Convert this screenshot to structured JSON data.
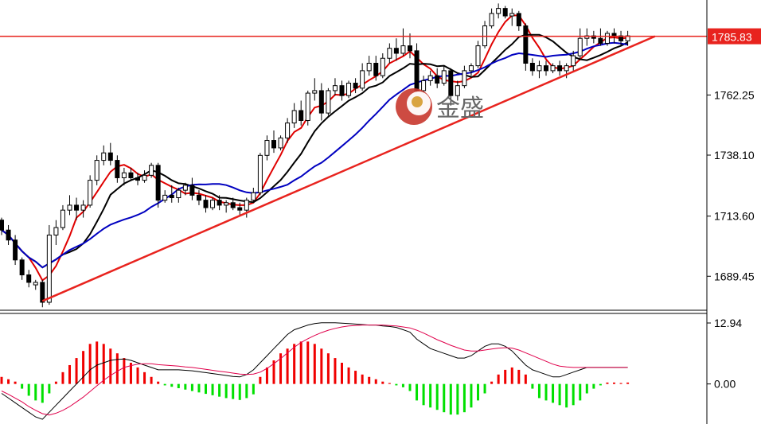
{
  "watermark": {
    "text": "金盛",
    "logo": "jinsheng-logo-icon"
  },
  "colors": {
    "bull_body": "#ffffff",
    "bear_body": "#000000",
    "wick": "#000000",
    "ma_fast": "#e00000",
    "ma_mid": "#000000",
    "ma_slow": "#0000c0",
    "trendline": "#e8231e",
    "resistance": "#e8231e",
    "hist_pos": "#f00000",
    "hist_neg": "#00e000",
    "macd_line": "#000000",
    "signal_line": "#e0004b",
    "price_tag_bg": "#e8231e"
  },
  "chart_data": [
    {
      "type": "candlestick",
      "price_tag": "1785.83",
      "y_ticks": [
        "1762.25",
        "1738.10",
        "1713.60",
        "1689.45"
      ],
      "tick_values": [
        1762.25,
        1738.1,
        1713.6,
        1689.45
      ],
      "ylim": [
        1675.8,
        1800.4
      ],
      "x_count": 93,
      "resistance_level": 1785.83,
      "trendline": {
        "start": [
          6,
          1679.5
        ],
        "end": [
          96,
          1785.83
        ]
      },
      "candles": [
        [
          1712,
          1713,
          1706,
          1708
        ],
        [
          1708,
          1710,
          1702,
          1704
        ],
        [
          1704,
          1706,
          1694,
          1696
        ],
        [
          1696,
          1697,
          1688,
          1690
        ],
        [
          1690,
          1692,
          1685,
          1687
        ],
        [
          1686,
          1688,
          1684,
          1687
        ],
        [
          1687,
          1688,
          1677,
          1679
        ],
        [
          1679,
          1710,
          1678,
          1706
        ],
        [
          1706,
          1712,
          1702,
          1709
        ],
        [
          1709,
          1718,
          1708,
          1716
        ],
        [
          1716,
          1722,
          1714,
          1718
        ],
        [
          1718,
          1721,
          1712,
          1716
        ],
        [
          1716,
          1720,
          1713,
          1718
        ],
        [
          1718,
          1730,
          1717,
          1728
        ],
        [
          1728,
          1738,
          1726,
          1736
        ],
        [
          1736,
          1742,
          1734,
          1739
        ],
        [
          1739,
          1743,
          1734,
          1736
        ],
        [
          1736,
          1738,
          1727,
          1729
        ],
        [
          1729,
          1733,
          1726,
          1731
        ],
        [
          1731,
          1733,
          1728,
          1729
        ],
        [
          1729,
          1731,
          1726,
          1728
        ],
        [
          1728,
          1732,
          1727,
          1730
        ],
        [
          1730,
          1735,
          1729,
          1734
        ],
        [
          1734,
          1735,
          1717,
          1720
        ],
        [
          1720,
          1724,
          1719,
          1722
        ],
        [
          1722,
          1726,
          1719,
          1721
        ],
        [
          1721,
          1725,
          1719,
          1724
        ],
        [
          1724,
          1727,
          1722,
          1726
        ],
        [
          1726,
          1729,
          1720,
          1722
        ],
        [
          1722,
          1724,
          1718,
          1720
        ],
        [
          1720,
          1722,
          1715,
          1717
        ],
        [
          1717,
          1721,
          1716,
          1720
        ],
        [
          1720,
          1722,
          1716,
          1718
        ],
        [
          1718,
          1720,
          1715,
          1719
        ],
        [
          1719,
          1721,
          1716,
          1717
        ],
        [
          1717,
          1719,
          1714,
          1716
        ],
        [
          1716,
          1721,
          1713,
          1720
        ],
        [
          1720,
          1725,
          1719,
          1723
        ],
        [
          1723,
          1739,
          1722,
          1738
        ],
        [
          1738,
          1746,
          1736,
          1744
        ],
        [
          1744,
          1748,
          1739,
          1741
        ],
        [
          1741,
          1746,
          1740,
          1745
        ],
        [
          1745,
          1753,
          1743,
          1751
        ],
        [
          1751,
          1759,
          1749,
          1756
        ],
        [
          1756,
          1760,
          1750,
          1752
        ],
        [
          1752,
          1764,
          1750,
          1763
        ],
        [
          1763,
          1769,
          1760,
          1764
        ],
        [
          1764,
          1767,
          1752,
          1755
        ],
        [
          1755,
          1765,
          1754,
          1764
        ],
        [
          1764,
          1769,
          1762,
          1766
        ],
        [
          1766,
          1768,
          1760,
          1762
        ],
        [
          1762,
          1768,
          1761,
          1767
        ],
        [
          1767,
          1769,
          1763,
          1765
        ],
        [
          1765,
          1775,
          1764,
          1772
        ],
        [
          1772,
          1778,
          1770,
          1775
        ],
        [
          1775,
          1778,
          1768,
          1770
        ],
        [
          1770,
          1779,
          1769,
          1777
        ],
        [
          1777,
          1783,
          1775,
          1781
        ],
        [
          1781,
          1785,
          1776,
          1779
        ],
        [
          1779,
          1789,
          1778,
          1782
        ],
        [
          1782,
          1787,
          1777,
          1780
        ],
        [
          1780,
          1783,
          1760,
          1764
        ],
        [
          1764,
          1770,
          1762,
          1768
        ],
        [
          1768,
          1772,
          1766,
          1770
        ],
        [
          1770,
          1773,
          1765,
          1767
        ],
        [
          1767,
          1774,
          1766,
          1772
        ],
        [
          1772,
          1773,
          1758,
          1762
        ],
        [
          1762,
          1768,
          1760,
          1766
        ],
        [
          1766,
          1774,
          1765,
          1772
        ],
        [
          1772,
          1775,
          1770,
          1774
        ],
        [
          1774,
          1784,
          1773,
          1782
        ],
        [
          1782,
          1792,
          1781,
          1790
        ],
        [
          1790,
          1797,
          1789,
          1795
        ],
        [
          1795,
          1799,
          1793,
          1797
        ],
        [
          1797,
          1798,
          1793,
          1794
        ],
        [
          1794,
          1797,
          1790,
          1795
        ],
        [
          1795,
          1796,
          1788,
          1790
        ],
        [
          1790,
          1791,
          1772,
          1775
        ],
        [
          1775,
          1777,
          1770,
          1772
        ],
        [
          1772,
          1776,
          1769,
          1774
        ],
        [
          1774,
          1776,
          1770,
          1772
        ],
        [
          1772,
          1775,
          1771,
          1774
        ],
        [
          1774,
          1776,
          1770,
          1772
        ],
        [
          1772,
          1775,
          1769,
          1774
        ],
        [
          1774,
          1780,
          1772,
          1778
        ],
        [
          1778,
          1789,
          1777,
          1785
        ],
        [
          1785,
          1789,
          1782,
          1786
        ],
        [
          1786,
          1788,
          1783,
          1785
        ],
        [
          1785,
          1789,
          1782,
          1783
        ],
        [
          1783,
          1788,
          1782,
          1787
        ],
        [
          1787,
          1789,
          1783,
          1786
        ],
        [
          1786,
          1788,
          1782,
          1784
        ],
        [
          1784,
          1788,
          1782,
          1786
        ]
      ]
    },
    {
      "type": "macd",
      "y_ticks": [
        "12.94",
        "0.00"
      ],
      "tick_values": [
        12.94,
        0
      ],
      "ylim": [
        -8.5,
        14.8
      ],
      "histogram": [
        1.5,
        1.0,
        0.5,
        -1.0,
        -2.5,
        -3.5,
        -4.0,
        -2.0,
        0.5,
        2.5,
        4.0,
        5.5,
        7.0,
        8.5,
        9.0,
        8.5,
        7.5,
        6.5,
        5.5,
        4.5,
        3.5,
        2.5,
        1.5,
        0.5,
        -0.3,
        -0.6,
        -0.9,
        -1.2,
        -1.5,
        -1.8,
        -2.1,
        -2.4,
        -2.7,
        -3.0,
        -3.2,
        -3.4,
        -3.0,
        -2.2,
        1.5,
        3.5,
        5.0,
        6.5,
        7.5,
        8.5,
        9.0,
        9.0,
        8.5,
        7.5,
        6.5,
        5.5,
        4.5,
        3.5,
        2.8,
        2.0,
        1.5,
        1.0,
        0.5,
        0.2,
        -0.3,
        -0.7,
        -1.5,
        -3.5,
        -4.5,
        -5.0,
        -5.5,
        -6.0,
        -6.5,
        -6.5,
        -6.0,
        -5.0,
        -3.5,
        -2.0,
        0.5,
        2.0,
        3.0,
        3.5,
        3.0,
        2.0,
        -1.0,
        -3.0,
        -3.5,
        -4.0,
        -4.5,
        -5.0,
        -4.5,
        -3.5,
        -2.0,
        -1.0,
        -0.3,
        0.3,
        0.3,
        0.2,
        0.3
      ],
      "macd": [
        -2.0,
        -3.0,
        -4.0,
        -5.0,
        -6.0,
        -7.0,
        -7.5,
        -6.0,
        -4.5,
        -3.0,
        -1.5,
        0.0,
        1.5,
        3.0,
        4.0,
        4.5,
        5.0,
        5.2,
        5.3,
        5.0,
        4.5,
        4.0,
        3.5,
        3.0,
        3.0,
        3.0,
        3.0,
        2.9,
        2.8,
        2.6,
        2.4,
        2.2,
        2.0,
        1.8,
        1.6,
        1.5,
        2.0,
        3.0,
        4.5,
        6.0,
        7.5,
        9.0,
        10.5,
        11.5,
        12.0,
        12.5,
        12.8,
        13.0,
        13.0,
        13.0,
        12.9,
        12.8,
        12.7,
        12.6,
        12.5,
        12.5,
        12.3,
        12.2,
        12.0,
        11.5,
        11.0,
        9.5,
        8.5,
        7.5,
        7.0,
        6.5,
        6.0,
        5.5,
        5.5,
        6.0,
        7.0,
        8.0,
        8.5,
        8.5,
        8.0,
        7.0,
        5.5,
        4.0,
        3.0,
        2.5,
        2.0,
        1.5,
        1.5,
        2.0,
        2.5,
        3.0,
        3.5,
        3.5,
        3.5,
        3.5,
        3.5,
        3.5,
        3.5
      ],
      "signal": [
        -1.5,
        -2.2,
        -3.0,
        -3.8,
        -4.8,
        -5.6,
        -6.3,
        -6.6,
        -6.2,
        -5.6,
        -4.8,
        -3.8,
        -2.8,
        -1.6,
        -0.4,
        0.8,
        1.8,
        2.7,
        3.5,
        3.9,
        4.2,
        4.3,
        4.3,
        4.1,
        4.0,
        3.9,
        3.8,
        3.6,
        3.5,
        3.3,
        3.1,
        2.9,
        2.7,
        2.5,
        2.3,
        2.1,
        2.0,
        2.1,
        2.5,
        3.3,
        4.3,
        5.4,
        6.6,
        7.8,
        8.8,
        9.6,
        10.3,
        10.9,
        11.4,
        11.8,
        12.1,
        12.3,
        12.4,
        12.5,
        12.5,
        12.5,
        12.5,
        12.4,
        12.3,
        12.1,
        11.9,
        11.4,
        10.8,
        10.1,
        9.4,
        8.8,
        8.2,
        7.7,
        7.2,
        7.0,
        7.0,
        7.2,
        7.4,
        7.6,
        7.7,
        7.6,
        7.2,
        6.6,
        6.0,
        5.4,
        4.8,
        4.2,
        3.8,
        3.6,
        3.5,
        3.5,
        3.5,
        3.5,
        3.5,
        3.5,
        3.5,
        3.5,
        3.5
      ]
    }
  ]
}
